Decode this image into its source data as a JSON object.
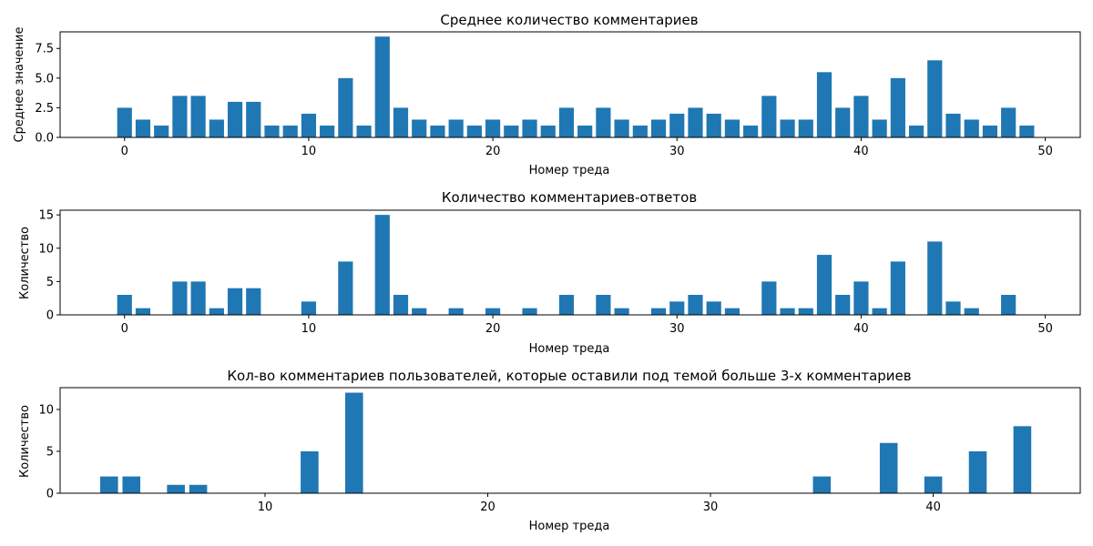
{
  "chart_data": [
    {
      "type": "bar",
      "title": "Среднее количество комментариев",
      "xlabel": "Номер треда",
      "ylabel": "Среднее значение",
      "xlim": [
        -3.5,
        51.9
      ],
      "ylim": [
        0,
        8.9
      ],
      "xticks": [
        0,
        10,
        20,
        30,
        40,
        50
      ],
      "yticks": [
        0.0,
        2.5,
        5.0,
        7.5
      ],
      "ytick_labels": [
        "0.0",
        "2.5",
        "5.0",
        "7.5"
      ],
      "color": "#1f77b4",
      "x": [
        0,
        1,
        2,
        3,
        4,
        5,
        6,
        7,
        8,
        9,
        10,
        11,
        12,
        13,
        14,
        15,
        16,
        17,
        18,
        19,
        20,
        21,
        22,
        23,
        24,
        25,
        26,
        27,
        28,
        29,
        30,
        31,
        32,
        33,
        34,
        35,
        36,
        37,
        38,
        39,
        40,
        41,
        42,
        43,
        44,
        45,
        46,
        47,
        48,
        49
      ],
      "values": [
        2.5,
        1.5,
        1.0,
        3.5,
        3.5,
        1.5,
        3.0,
        3.0,
        1.0,
        1.0,
        2.0,
        1.0,
        5.0,
        1.0,
        8.5,
        2.5,
        1.5,
        1.0,
        1.5,
        1.0,
        1.5,
        1.0,
        1.5,
        1.0,
        2.5,
        1.0,
        2.5,
        1.5,
        1.0,
        1.5,
        2.0,
        2.5,
        2.0,
        1.5,
        1.0,
        3.5,
        1.5,
        1.5,
        5.5,
        2.5,
        3.5,
        1.5,
        5.0,
        1.0,
        6.5,
        2.0,
        1.5,
        1.0,
        2.5,
        1.0
      ]
    },
    {
      "type": "bar",
      "title": "Количество комментариев-ответов",
      "xlabel": "Номер треда",
      "ylabel": "Количество",
      "xlim": [
        -3.5,
        51.9
      ],
      "ylim": [
        0,
        15.7
      ],
      "xticks": [
        0,
        10,
        20,
        30,
        40,
        50
      ],
      "yticks": [
        0,
        5,
        10,
        15
      ],
      "ytick_labels": [
        "0",
        "5",
        "10",
        "15"
      ],
      "color": "#1f77b4",
      "x": [
        0,
        1,
        2,
        3,
        4,
        5,
        6,
        7,
        8,
        9,
        10,
        11,
        12,
        13,
        14,
        15,
        16,
        17,
        18,
        19,
        20,
        21,
        22,
        23,
        24,
        25,
        26,
        27,
        28,
        29,
        30,
        31,
        32,
        33,
        34,
        35,
        36,
        37,
        38,
        39,
        40,
        41,
        42,
        43,
        44,
        45,
        46,
        47,
        48,
        49
      ],
      "values": [
        3,
        1,
        0,
        5,
        5,
        1,
        4,
        4,
        0,
        0,
        2,
        0,
        8,
        0,
        15,
        3,
        1,
        0,
        1,
        0,
        1,
        0,
        1,
        0,
        3,
        0,
        3,
        1,
        0,
        1,
        2,
        3,
        2,
        1,
        0,
        5,
        1,
        1,
        9,
        3,
        5,
        1,
        8,
        0,
        11,
        2,
        1,
        0,
        3,
        0
      ]
    },
    {
      "type": "bar",
      "title": "Кол-во комментариев пользователей, которые оставили под темой больше 3-х комментариев",
      "xlabel": "Номер треда",
      "ylabel": "Количество",
      "xlim": [
        0.8,
        46.6
      ],
      "ylim": [
        0,
        12.6
      ],
      "xticks": [
        10,
        20,
        30,
        40
      ],
      "yticks": [
        0,
        5,
        10
      ],
      "ytick_labels": [
        "0",
        "5",
        "10"
      ],
      "color": "#1f77b4",
      "x": [
        3,
        4,
        6,
        7,
        12,
        14,
        35,
        38,
        40,
        42,
        44
      ],
      "values": [
        2,
        2,
        1,
        1,
        5,
        12,
        2,
        6,
        2,
        5,
        8
      ]
    }
  ]
}
